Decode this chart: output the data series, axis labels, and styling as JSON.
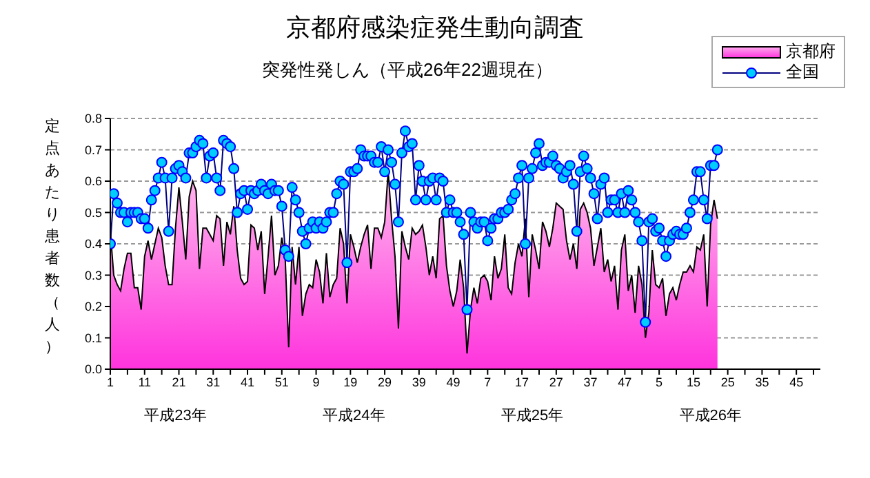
{
  "chart_data": {
    "type": "area",
    "title": "京都府感染症発生動向調査",
    "subtitle": "突発性発しん（平成26年22週現在）",
    "ylabel": "定点あたり患者数（人）",
    "annotations": [
      "平成23年",
      "平成24年",
      "平成25年",
      "平成26年"
    ],
    "categories": [
      "1",
      null,
      null,
      null,
      null,
      null,
      null,
      null,
      null,
      null,
      "11",
      null,
      null,
      null,
      null,
      null,
      null,
      null,
      null,
      null,
      "21",
      null,
      null,
      null,
      null,
      null,
      null,
      null,
      null,
      null,
      "31",
      null,
      null,
      null,
      null,
      null,
      null,
      null,
      null,
      null,
      "41",
      null,
      null,
      null,
      null,
      null,
      null,
      null,
      null,
      null,
      "51",
      null,
      null,
      null,
      null,
      null,
      null,
      null,
      null,
      null,
      "9",
      null,
      null,
      null,
      null,
      null,
      null,
      null,
      null,
      null,
      "19",
      null,
      null,
      null,
      null,
      null,
      null,
      null,
      null,
      null,
      "29",
      null,
      null,
      null,
      null,
      null,
      null,
      null,
      null,
      null,
      "39",
      null,
      null,
      null,
      null,
      null,
      null,
      null,
      null,
      null,
      "49",
      null,
      null,
      null,
      null,
      null,
      null,
      null,
      null,
      null,
      "7",
      null,
      null,
      null,
      null,
      null,
      null,
      null,
      null,
      null,
      "17",
      null,
      null,
      null,
      null,
      null,
      null,
      null,
      null,
      null,
      "27",
      null,
      null,
      null,
      null,
      null,
      null,
      null,
      null,
      null,
      "37",
      null,
      null,
      null,
      null,
      null,
      null,
      null,
      null,
      null,
      "47",
      null,
      null,
      null,
      null,
      null,
      null,
      null,
      null,
      null,
      "5",
      null,
      null,
      null,
      null,
      null,
      null,
      null,
      null,
      null,
      "15",
      null,
      null,
      null,
      null,
      null,
      null,
      null,
      null,
      null,
      "25",
      null,
      null,
      null,
      null,
      null,
      null,
      null,
      null,
      null,
      "35",
      null,
      null,
      null,
      null,
      null,
      null,
      null,
      null,
      null,
      "45",
      null,
      null,
      null,
      null,
      null,
      null,
      null
    ],
    "ylim": [
      0,
      0.8
    ],
    "yticks": [
      {
        "value": 0,
        "label": "0.0"
      },
      0.1,
      0.2,
      0.3,
      0.4,
      0.5,
      0.6,
      0.7,
      0.8
    ],
    "grid": "y",
    "legend": "top right",
    "series": [
      {
        "name": "京都府",
        "color": "#ff33dd",
        "values": [
          0.44,
          0.3,
          0.27,
          0.25,
          0.32,
          0.37,
          0.37,
          0.26,
          0.26,
          0.19,
          0.36,
          0.41,
          0.35,
          0.4,
          0.45,
          0.42,
          0.33,
          0.27,
          0.27,
          0.45,
          0.58,
          0.47,
          0.35,
          0.55,
          0.6,
          0.57,
          0.32,
          0.45,
          0.45,
          0.43,
          0.41,
          0.49,
          0.48,
          0.33,
          0.47,
          0.43,
          0.52,
          0.38,
          0.29,
          0.27,
          0.28,
          0.46,
          0.45,
          0.38,
          0.44,
          0.24,
          0.36,
          0.49,
          0.3,
          0.33,
          0.42,
          0.35,
          0.07,
          0.39,
          0.27,
          0.39,
          0.17,
          0.24,
          0.27,
          0.26,
          0.35,
          0.31,
          0.21,
          0.37,
          0.23,
          0.27,
          0.29,
          0.45,
          0.4,
          0.21,
          0.43,
          0.39,
          0.34,
          0.39,
          0.43,
          0.46,
          0.32,
          0.45,
          0.45,
          0.42,
          0.47,
          0.63,
          0.48,
          0.36,
          0.13,
          0.44,
          0.39,
          0.35,
          0.45,
          0.43,
          0.44,
          0.46,
          0.39,
          0.3,
          0.36,
          0.29,
          0.48,
          0.49,
          0.33,
          0.25,
          0.2,
          0.25,
          0.35,
          0.26,
          0.05,
          0.19,
          0.26,
          0.21,
          0.29,
          0.3,
          0.28,
          0.22,
          0.36,
          0.29,
          0.32,
          0.43,
          0.26,
          0.24,
          0.34,
          0.4,
          0.36,
          0.48,
          0.23,
          0.43,
          0.38,
          0.32,
          0.47,
          0.44,
          0.39,
          0.45,
          0.53,
          0.52,
          0.51,
          0.41,
          0.35,
          0.4,
          0.32,
          0.51,
          0.53,
          0.5,
          0.45,
          0.33,
          0.39,
          0.45,
          0.31,
          0.35,
          0.28,
          0.33,
          0.19,
          0.38,
          0.43,
          0.25,
          0.3,
          0.18,
          0.33,
          0.27,
          0.1,
          0.18,
          0.38,
          0.27,
          0.26,
          0.29,
          0.17,
          0.24,
          0.26,
          0.22,
          0.27,
          0.31,
          0.31,
          0.33,
          0.31,
          0.39,
          0.38,
          0.43,
          0.2,
          0.46,
          0.54,
          0.48,
          null,
          null,
          null,
          null,
          null,
          null,
          null,
          null,
          null,
          null,
          null,
          null,
          null,
          null,
          null,
          null,
          null,
          null,
          null,
          null,
          null,
          null,
          null,
          null,
          null,
          null,
          null,
          null,
          null,
          null
        ]
      },
      {
        "name": "全国",
        "type": "line",
        "marker": "circle",
        "color": "#00ccff",
        "values": [
          0.4,
          0.56,
          0.53,
          0.5,
          0.5,
          0.47,
          0.5,
          0.5,
          0.5,
          0.48,
          0.48,
          0.45,
          0.54,
          0.57,
          0.61,
          0.66,
          0.61,
          0.44,
          0.61,
          0.64,
          0.65,
          0.63,
          0.61,
          0.69,
          0.69,
          0.71,
          0.73,
          0.72,
          0.61,
          0.68,
          0.69,
          0.61,
          0.57,
          0.73,
          0.72,
          0.71,
          0.64,
          0.5,
          0.56,
          0.57,
          0.51,
          0.57,
          0.56,
          0.57,
          0.59,
          0.57,
          0.56,
          0.59,
          0.57,
          0.57,
          0.52,
          0.38,
          0.36,
          0.58,
          0.54,
          0.5,
          0.44,
          0.4,
          0.45,
          0.47,
          0.45,
          0.47,
          0.45,
          0.47,
          0.5,
          0.5,
          0.56,
          0.6,
          0.59,
          0.34,
          0.63,
          0.63,
          0.64,
          0.7,
          0.68,
          0.68,
          0.68,
          0.66,
          0.66,
          0.71,
          0.63,
          0.7,
          0.66,
          0.59,
          0.47,
          0.69,
          0.76,
          0.71,
          0.72,
          0.54,
          0.65,
          0.6,
          0.54,
          0.6,
          0.61,
          0.54,
          0.61,
          0.6,
          0.5,
          0.54,
          0.5,
          0.5,
          0.47,
          0.43,
          0.19,
          0.5,
          0.47,
          0.45,
          0.47,
          0.47,
          0.41,
          0.45,
          0.48,
          0.48,
          0.5,
          0.5,
          0.51,
          0.54,
          0.56,
          0.61,
          0.65,
          0.4,
          0.61,
          0.64,
          0.69,
          0.72,
          0.65,
          0.66,
          0.66,
          0.68,
          0.65,
          0.64,
          0.61,
          0.63,
          0.65,
          0.59,
          0.44,
          0.63,
          0.68,
          0.64,
          0.61,
          0.56,
          0.48,
          0.59,
          0.61,
          0.5,
          0.54,
          0.54,
          0.5,
          0.56,
          0.5,
          0.57,
          0.54,
          0.5,
          0.47,
          0.41,
          0.15,
          0.47,
          0.48,
          0.44,
          0.45,
          0.41,
          0.36,
          0.41,
          0.43,
          0.44,
          0.43,
          0.43,
          0.45,
          0.5,
          0.54,
          0.63,
          0.63,
          0.54,
          0.48,
          0.65,
          0.65,
          0.7,
          null,
          null,
          null,
          null,
          null,
          null,
          null,
          null,
          null,
          null,
          null,
          null,
          null,
          null,
          null,
          null,
          null,
          null,
          null,
          null,
          null,
          null,
          null,
          null,
          null,
          null,
          null,
          null,
          null,
          null
        ]
      }
    ]
  }
}
